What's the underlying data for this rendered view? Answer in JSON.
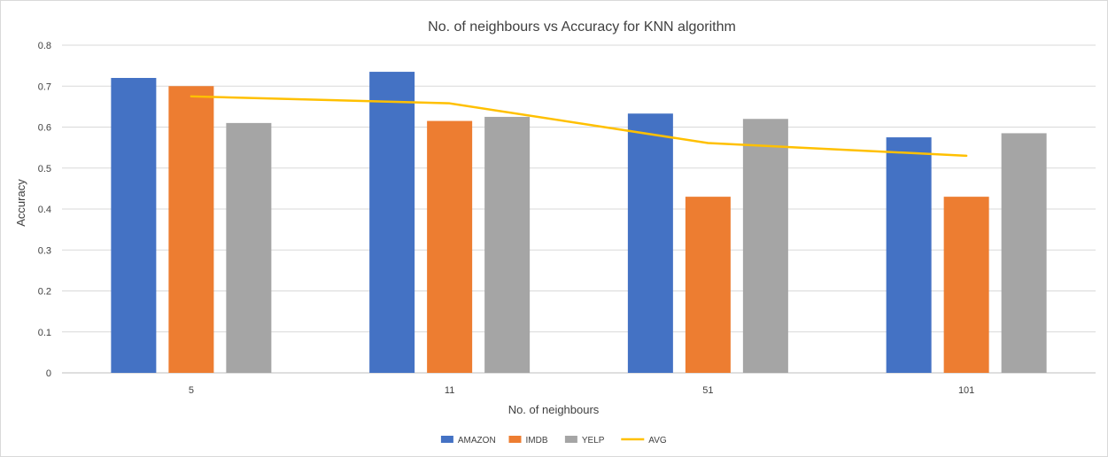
{
  "chart_data": {
    "type": "bar",
    "title": "No. of neighbours vs Accuracy for KNN algorithm",
    "xlabel": "No. of neighbours",
    "ylabel": "Accuracy",
    "categories": [
      "5",
      "11",
      "51",
      "101"
    ],
    "ylim": [
      0,
      0.8
    ],
    "yticks": [
      "0",
      "0.1",
      "0.2",
      "0.3",
      "0.4",
      "0.5",
      "0.6",
      "0.7",
      "0.8"
    ],
    "grid": true,
    "legend_position": "bottom",
    "series": [
      {
        "name": "AMAZON",
        "type": "bar",
        "color": "#4472C4",
        "values": [
          0.72,
          0.735,
          0.633,
          0.575
        ]
      },
      {
        "name": "IMDB",
        "type": "bar",
        "color": "#ED7D31",
        "values": [
          0.7,
          0.615,
          0.43,
          0.43
        ]
      },
      {
        "name": "YELP",
        "type": "bar",
        "color": "#A5A5A5",
        "values": [
          0.61,
          0.625,
          0.62,
          0.585
        ]
      },
      {
        "name": "AVG",
        "type": "line",
        "color": "#FFC000",
        "values": [
          0.675,
          0.658,
          0.561,
          0.53
        ]
      }
    ]
  }
}
